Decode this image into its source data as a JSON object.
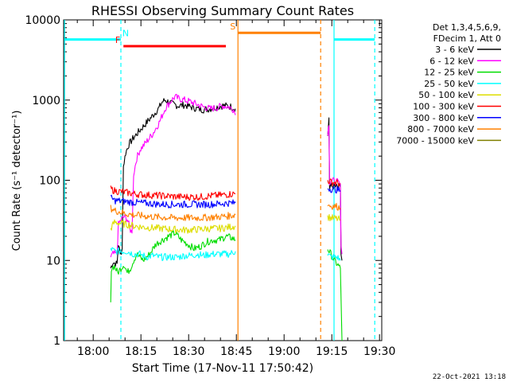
{
  "chart_data": {
    "type": "line",
    "title": "RHESSI Observing Summary Count Rates",
    "xlabel": "Start Time (17-Nov-11 17:50:42)",
    "ylabel": "Count Rate (s⁻¹ detector⁻¹)",
    "x_start_minutes_of_day": 1070.7,
    "xlim": [
      0,
      100
    ],
    "ylim": [
      1,
      10000
    ],
    "y_scale": "log",
    "x_ticks": [
      {
        "minute": 9.3,
        "label": "18:00"
      },
      {
        "minute": 24.3,
        "label": "18:15"
      },
      {
        "minute": 39.3,
        "label": "18:30"
      },
      {
        "minute": 54.3,
        "label": "18:45"
      },
      {
        "minute": 69.3,
        "label": "19:00"
      },
      {
        "minute": 84.3,
        "label": "19:15"
      },
      {
        "minute": 99.3,
        "label": "19:30"
      }
    ],
    "y_ticks": [
      {
        "value": 1,
        "label": "1"
      },
      {
        "value": 10,
        "label": "10"
      },
      {
        "value": 100,
        "label": "100"
      },
      {
        "value": 1000,
        "label": "1000"
      },
      {
        "value": 10000,
        "label": "10000"
      }
    ],
    "legend_header": [
      "Det 1,3,4,5,6,9,",
      "FDecim 1, Att 0"
    ],
    "legend_placement": "right",
    "series": [
      {
        "name": "3 - 6 keV",
        "color": "#000000",
        "segments": [
          [
            [
              14.8,
              8
            ],
            [
              15.5,
              9.5
            ],
            [
              16.8,
              9
            ],
            [
              17.2,
              16
            ],
            [
              17.8,
              12
            ],
            [
              18.4,
              14
            ],
            [
              18.8,
              150
            ],
            [
              19.5,
              220
            ],
            [
              20.5,
              280
            ],
            [
              22,
              340
            ],
            [
              24,
              420
            ],
            [
              26,
              520
            ],
            [
              28,
              640
            ],
            [
              30,
              800
            ],
            [
              31,
              950
            ],
            [
              32,
              1000
            ],
            [
              34,
              900
            ],
            [
              36,
              850
            ],
            [
              38,
              870
            ],
            [
              40,
              820
            ],
            [
              42,
              780
            ],
            [
              44,
              760
            ],
            [
              46,
              780
            ],
            [
              48,
              820
            ],
            [
              50,
              850
            ],
            [
              52,
              840
            ],
            [
              53.5,
              800
            ],
            [
              54,
              780
            ]
          ],
          [
            [
              83,
              350
            ],
            [
              83.4,
              600
            ],
            [
              83.6,
              80
            ],
            [
              84,
              85
            ],
            [
              86,
              82
            ],
            [
              87,
              82
            ],
            [
              87.2,
              12
            ],
            [
              87.5,
              10
            ]
          ]
        ]
      },
      {
        "name": "6 - 12 keV",
        "color": "#ff00ff",
        "segments": [
          [
            [
              14.8,
              11
            ],
            [
              15.5,
              12
            ],
            [
              16.8,
              12
            ],
            [
              17.2,
              28
            ],
            [
              18,
              32
            ],
            [
              19,
              35
            ],
            [
              20,
              33
            ],
            [
              21,
              24
            ],
            [
              21.5,
              22
            ],
            [
              22,
              120
            ],
            [
              23,
              190
            ],
            [
              24,
              240
            ],
            [
              26,
              300
            ],
            [
              28,
              380
            ],
            [
              30,
              520
            ],
            [
              32,
              800
            ],
            [
              34,
              1000
            ],
            [
              35,
              1100
            ],
            [
              36,
              1050
            ],
            [
              38,
              1000
            ],
            [
              40,
              950
            ],
            [
              42,
              880
            ],
            [
              44,
              820
            ],
            [
              46,
              780
            ],
            [
              48,
              800
            ],
            [
              50,
              850
            ],
            [
              52,
              820
            ],
            [
              53.5,
              760
            ],
            [
              54,
              650
            ]
          ],
          [
            [
              83,
              400
            ],
            [
              83.4,
              480
            ],
            [
              83.6,
              95
            ],
            [
              84,
              100
            ],
            [
              86,
              95
            ],
            [
              87,
              90
            ],
            [
              87.2,
              14
            ],
            [
              87.5,
              12
            ]
          ]
        ]
      },
      {
        "name": "12 - 25 keV",
        "color": "#00dd00",
        "segments": [
          [
            [
              14.8,
              3
            ],
            [
              15,
              8
            ],
            [
              16,
              8.5
            ],
            [
              17,
              7
            ],
            [
              18,
              8
            ],
            [
              19,
              9
            ],
            [
              20,
              7
            ],
            [
              21,
              8
            ],
            [
              22,
              10
            ],
            [
              23,
              12
            ],
            [
              25,
              10
            ],
            [
              27,
              12
            ],
            [
              29,
              16
            ],
            [
              31,
              18
            ],
            [
              33,
              20
            ],
            [
              35,
              22
            ],
            [
              37,
              18
            ],
            [
              39,
              16
            ],
            [
              41,
              14
            ],
            [
              43,
              15
            ],
            [
              45,
              17
            ],
            [
              47,
              18
            ],
            [
              49,
              18
            ],
            [
              51,
              20
            ],
            [
              53,
              19
            ],
            [
              54,
              18
            ]
          ],
          [
            [
              83,
              14
            ],
            [
              84,
              12
            ],
            [
              85,
              10
            ],
            [
              86,
              9
            ],
            [
              87,
              8
            ],
            [
              87.5,
              1
            ]
          ]
        ]
      },
      {
        "name": "25 - 50 keV",
        "color": "#00ffff",
        "segments": [
          [
            [
              14.8,
              14
            ],
            [
              16,
              13
            ],
            [
              18,
              13
            ],
            [
              20,
              13
            ],
            [
              22,
              12
            ],
            [
              24,
              12
            ],
            [
              26,
              11
            ],
            [
              28,
              11.5
            ],
            [
              30,
              11
            ],
            [
              32,
              11
            ],
            [
              34,
              11
            ],
            [
              36,
              11
            ],
            [
              38,
              11.5
            ],
            [
              40,
              11.5
            ],
            [
              42,
              12
            ],
            [
              44,
              11.5
            ],
            [
              46,
              12
            ],
            [
              48,
              12
            ],
            [
              50,
              12
            ],
            [
              52,
              12
            ],
            [
              54,
              13
            ]
          ],
          [
            [
              83,
              12
            ],
            [
              84,
              11
            ],
            [
              86,
              11
            ],
            [
              87,
              10
            ]
          ]
        ]
      },
      {
        "name": "50 - 100 keV",
        "color": "#dddd00",
        "segments": [
          [
            [
              14.8,
              25
            ],
            [
              16,
              30
            ],
            [
              18,
              29
            ],
            [
              20,
              28
            ],
            [
              22,
              27
            ],
            [
              25,
              26
            ],
            [
              28,
              25.5
            ],
            [
              31,
              25
            ],
            [
              34,
              24.5
            ],
            [
              37,
              24
            ],
            [
              40,
              24
            ],
            [
              43,
              24.5
            ],
            [
              46,
              25
            ],
            [
              49,
              25
            ],
            [
              52,
              26
            ],
            [
              54,
              27
            ]
          ],
          [
            [
              83,
              35
            ],
            [
              84,
              34
            ],
            [
              86,
              33
            ],
            [
              87,
              32
            ]
          ]
        ]
      },
      {
        "name": "100 - 300 keV",
        "color": "#ff0000",
        "segments": [
          [
            [
              14.8,
              78
            ],
            [
              16,
              74
            ],
            [
              18,
              72
            ],
            [
              20,
              70
            ],
            [
              22,
              68
            ],
            [
              25,
              66
            ],
            [
              28,
              65
            ],
            [
              31,
              64
            ],
            [
              34,
              63
            ],
            [
              37,
              62
            ],
            [
              40,
              62
            ],
            [
              43,
              62
            ],
            [
              46,
              64
            ],
            [
              49,
              65
            ],
            [
              52,
              67
            ],
            [
              54,
              68
            ]
          ],
          [
            [
              83,
              100
            ],
            [
              84,
              95
            ],
            [
              86,
              93
            ],
            [
              87,
              90
            ]
          ]
        ]
      },
      {
        "name": "300 - 800 keV",
        "color": "#0000ff",
        "segments": [
          [
            [
              14.8,
              60
            ],
            [
              16,
              56
            ],
            [
              18,
              55
            ],
            [
              20,
              54
            ],
            [
              22,
              53
            ],
            [
              25,
              52
            ],
            [
              28,
              51
            ],
            [
              31,
              50
            ],
            [
              34,
              50
            ],
            [
              37,
              50
            ],
            [
              40,
              50
            ],
            [
              43,
              50
            ],
            [
              46,
              50
            ],
            [
              49,
              51
            ],
            [
              52,
              52
            ],
            [
              54,
              52
            ]
          ],
          [
            [
              83,
              80
            ],
            [
              84,
              78
            ],
            [
              86,
              76
            ],
            [
              87,
              74
            ]
          ]
        ]
      },
      {
        "name": "800 - 7000 keV",
        "color": "#ff8000",
        "segments": [
          [
            [
              14.8,
              45
            ],
            [
              16,
              42
            ],
            [
              18,
              40
            ],
            [
              20,
              38
            ],
            [
              22,
              37
            ],
            [
              25,
              36
            ],
            [
              28,
              35
            ],
            [
              31,
              34.5
            ],
            [
              34,
              34
            ],
            [
              37,
              34
            ],
            [
              40,
              34
            ],
            [
              43,
              34
            ],
            [
              46,
              34.5
            ],
            [
              49,
              35
            ],
            [
              52,
              36
            ],
            [
              54,
              37
            ]
          ],
          [
            [
              83,
              50
            ],
            [
              84,
              48
            ],
            [
              86,
              47
            ],
            [
              87,
              45
            ]
          ]
        ]
      },
      {
        "name": "7000 - 15000 keV",
        "color": "#808000",
        "segments": []
      }
    ],
    "annotations": [
      {
        "type": "vline",
        "minute": 0.3,
        "color": "#00ffff",
        "style": "solid"
      },
      {
        "type": "vline",
        "minute": 18.0,
        "color": "#00ffff",
        "style": "dashed"
      },
      {
        "type": "vline",
        "minute": 54.8,
        "color": "#ff8000",
        "style": "solid"
      },
      {
        "type": "vline",
        "minute": 80.8,
        "color": "#ff8000",
        "style": "dashed"
      },
      {
        "type": "vline",
        "minute": 85.0,
        "color": "#00ffff",
        "style": "solid"
      },
      {
        "type": "vline",
        "minute": 97.8,
        "color": "#00ffff",
        "style": "dashed"
      },
      {
        "type": "hbar",
        "label": "N",
        "label_minute": 19.5,
        "from": 0.3,
        "to": 18.0,
        "y": 5700,
        "color": "#00ffff"
      },
      {
        "type": "hbar",
        "label": "",
        "label_minute": 0,
        "from": 85.0,
        "to": 97.8,
        "y": 5700,
        "color": "#00ffff"
      },
      {
        "type": "hbar",
        "label": "F",
        "label_minute": 17.0,
        "from": 18.8,
        "to": 51.0,
        "y": 4700,
        "color": "#ff0000"
      },
      {
        "type": "hbar",
        "label": "S",
        "label_minute": 53.2,
        "from": 54.8,
        "to": 80.8,
        "y": 6900,
        "color": "#ff8000"
      }
    ],
    "timestamp": "22-Oct-2021 13:18"
  }
}
